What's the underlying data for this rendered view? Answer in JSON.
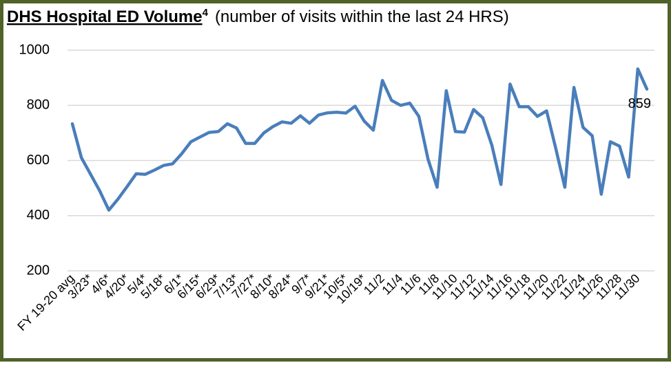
{
  "chart_data": {
    "type": "line",
    "title": "DHS Hospital ED Volume",
    "title_superscript": "4",
    "subtitle": "(number of visits within the last 24 HRS)",
    "categories": [
      "FY 19-20 avg",
      null,
      "3/23*",
      null,
      "4/6*",
      null,
      "4/20*",
      null,
      "5/4*",
      null,
      "5/18*",
      null,
      "6/1*",
      null,
      "6/15*",
      null,
      "6/29*",
      null,
      "7/13*",
      null,
      "7/27*",
      null,
      "8/10*",
      null,
      "8/24*",
      null,
      "9/7*",
      null,
      "9/21*",
      null,
      "10/5*",
      null,
      "10/19*",
      null,
      "11/2",
      null,
      "11/4",
      null,
      "11/6",
      null,
      "11/8",
      null,
      "11/10",
      null,
      "11/12",
      null,
      "11/14",
      null,
      "11/16",
      null,
      "11/18",
      null,
      "11/20",
      null,
      "11/22",
      null,
      "11/24",
      null,
      "11/26",
      null,
      "11/28",
      null,
      "11/30",
      null
    ],
    "series": [
      {
        "name": "ED Volume",
        "color": "#4a7ebb",
        "values": [
          733,
          610,
          550,
          490,
          420,
          460,
          505,
          552,
          550,
          565,
          582,
          588,
          625,
          668,
          685,
          702,
          705,
          733,
          718,
          662,
          662,
          700,
          723,
          740,
          735,
          762,
          735,
          765,
          773,
          775,
          772,
          797,
          743,
          710,
          890,
          818,
          800,
          808,
          760,
          605,
          503,
          853,
          705,
          703,
          785,
          755,
          655,
          513,
          877,
          795,
          795,
          760,
          780,
          645,
          503,
          865,
          720,
          690,
          478,
          668,
          652,
          540,
          932,
          859
        ],
        "value_labels": [
          null,
          null,
          null,
          null,
          null,
          null,
          null,
          null,
          null,
          null,
          null,
          null,
          null,
          null,
          null,
          null,
          null,
          null,
          null,
          null,
          null,
          null,
          null,
          null,
          null,
          null,
          null,
          null,
          null,
          null,
          null,
          null,
          null,
          null,
          null,
          null,
          null,
          null,
          null,
          null,
          null,
          null,
          null,
          null,
          null,
          null,
          null,
          null,
          null,
          null,
          null,
          null,
          null,
          null,
          null,
          null,
          null,
          null,
          null,
          null,
          null,
          null,
          null,
          "859"
        ]
      }
    ],
    "ylim": [
      200,
      1000
    ],
    "yticks": [
      200,
      400,
      600,
      800,
      1000
    ],
    "grid": true,
    "frame_color": "#4f6228"
  }
}
